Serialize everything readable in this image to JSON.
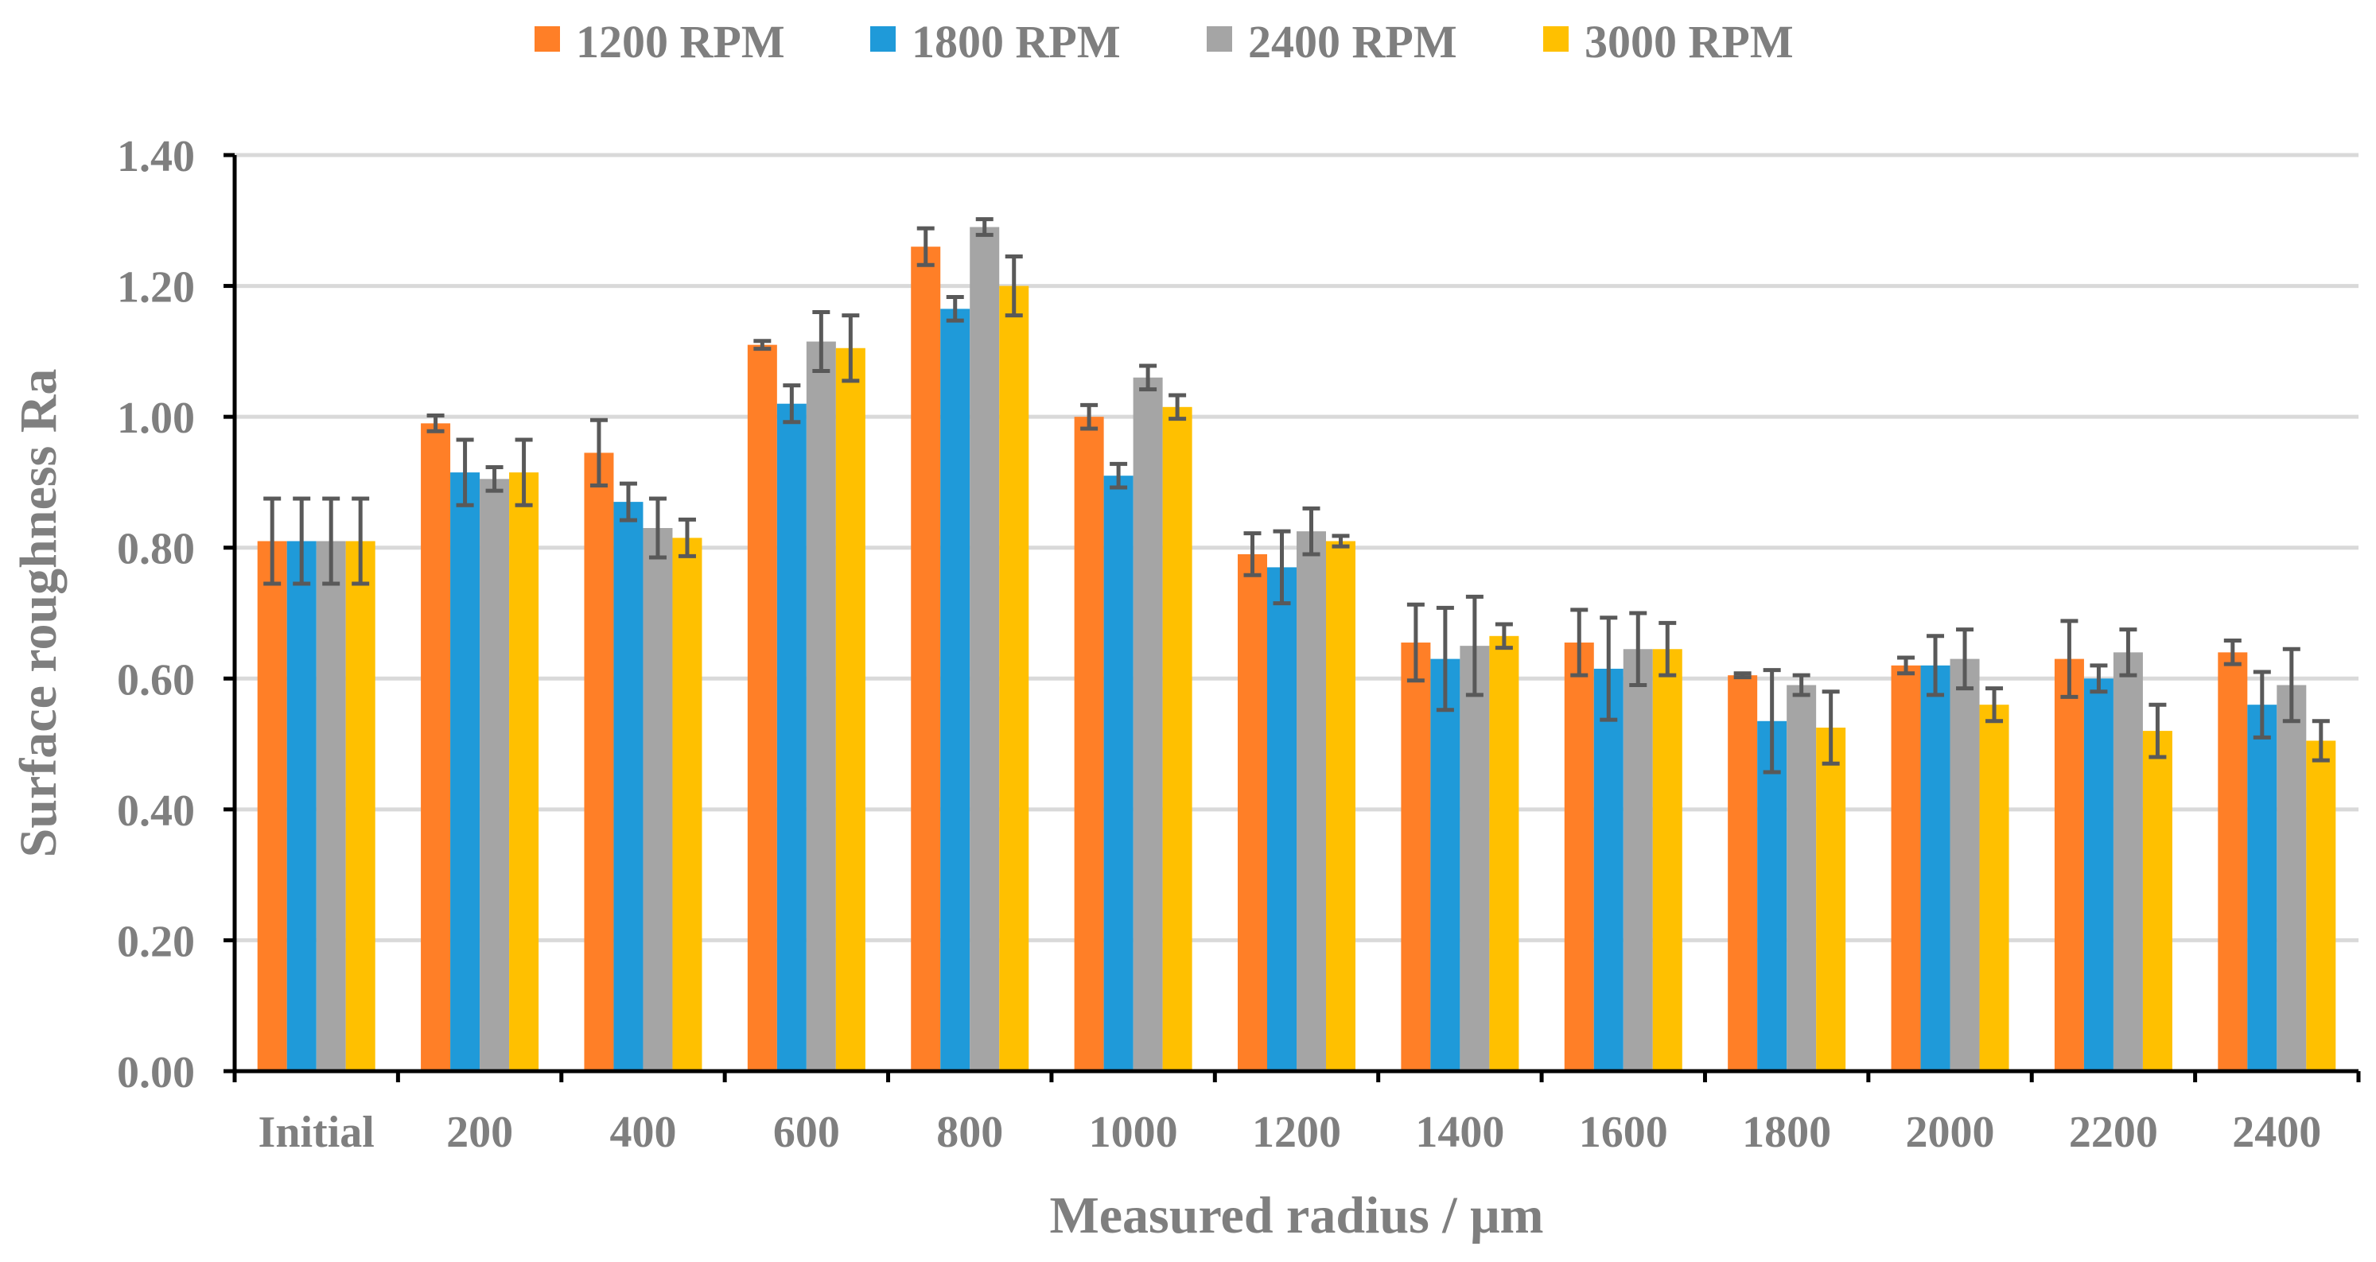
{
  "chart_data": {
    "type": "bar",
    "title": "",
    "xlabel": "Measured radius / μm",
    "ylabel": "Surface roughness Ra",
    "ylim": [
      0,
      1.4
    ],
    "y_ticks": [
      "0.00",
      "0.20",
      "0.40",
      "0.60",
      "0.80",
      "1.00",
      "1.20",
      "1.40"
    ],
    "grid": true,
    "legend_position": "top-center",
    "categories": [
      "Initial",
      "200",
      "400",
      "600",
      "800",
      "1000",
      "1200",
      "1400",
      "1600",
      "1800",
      "2000",
      "2200",
      "2400"
    ],
    "series": [
      {
        "name": "1200 RPM",
        "color": "#ff7f27",
        "values": [
          0.81,
          0.99,
          0.945,
          1.11,
          1.26,
          1.0,
          0.79,
          0.655,
          0.655,
          0.605,
          0.62,
          0.63,
          0.64
        ],
        "errors": [
          0.065,
          0.012,
          0.05,
          0.006,
          0.028,
          0.018,
          0.032,
          0.058,
          0.05,
          0.003,
          0.012,
          0.058,
          0.018
        ]
      },
      {
        "name": "1800 RPM",
        "color": "#1f9ad9",
        "values": [
          0.81,
          0.915,
          0.87,
          1.02,
          1.165,
          0.91,
          0.77,
          0.63,
          0.615,
          0.535,
          0.62,
          0.6,
          0.56
        ],
        "errors": [
          0.065,
          0.05,
          0.028,
          0.028,
          0.018,
          0.018,
          0.055,
          0.078,
          0.078,
          0.078,
          0.045,
          0.02,
          0.05
        ]
      },
      {
        "name": "2400 RPM",
        "color": "#a5a5a5",
        "values": [
          0.81,
          0.905,
          0.83,
          1.115,
          1.29,
          1.06,
          0.825,
          0.65,
          0.645,
          0.59,
          0.63,
          0.64,
          0.59
        ],
        "errors": [
          0.065,
          0.018,
          0.045,
          0.045,
          0.012,
          0.018,
          0.035,
          0.075,
          0.055,
          0.015,
          0.045,
          0.035,
          0.055
        ]
      },
      {
        "name": "3000 RPM",
        "color": "#ffc000",
        "values": [
          0.81,
          0.915,
          0.815,
          1.105,
          1.2,
          1.015,
          0.81,
          0.665,
          0.645,
          0.525,
          0.56,
          0.52,
          0.505
        ],
        "errors": [
          0.065,
          0.05,
          0.028,
          0.05,
          0.045,
          0.018,
          0.008,
          0.018,
          0.04,
          0.055,
          0.025,
          0.04,
          0.03
        ]
      }
    ]
  }
}
